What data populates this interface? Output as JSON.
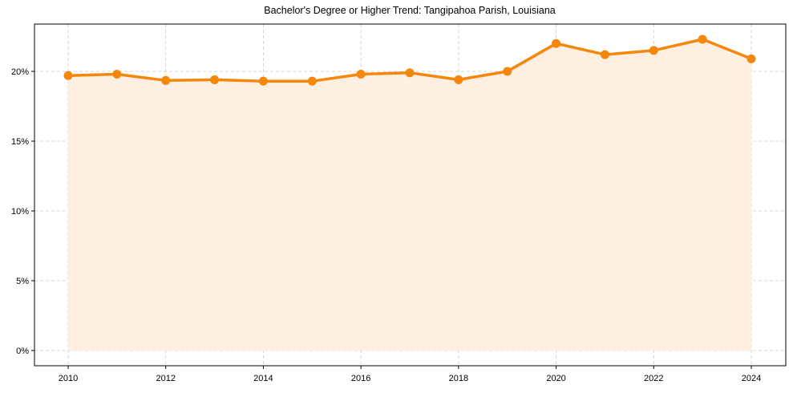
{
  "chart_data": {
    "type": "line",
    "title": "Bachelor's Degree or Higher Trend: Tangipahoa Parish, Louisiana",
    "xlabel": "",
    "ylabel": "",
    "x": [
      2010,
      2011,
      2012,
      2013,
      2014,
      2015,
      2016,
      2017,
      2018,
      2019,
      2020,
      2021,
      2022,
      2023,
      2024
    ],
    "series": [
      {
        "name": "Bachelor's Degree or Higher",
        "values": [
          19.7,
          19.8,
          19.35,
          19.4,
          19.3,
          19.3,
          19.8,
          19.9,
          19.4,
          20.0,
          22.0,
          21.2,
          21.5,
          22.3,
          20.9
        ],
        "color": "#f5870c",
        "fill_color": "#fdf0e3",
        "marker": "circle"
      }
    ],
    "xticks": [
      2010,
      2012,
      2014,
      2016,
      2018,
      2020,
      2022,
      2024
    ],
    "xtick_labels": [
      "2010",
      "2012",
      "2014",
      "2016",
      "2018",
      "2020",
      "2022",
      "2024"
    ],
    "yticks": [
      0,
      5,
      10,
      15,
      20
    ],
    "ytick_labels": [
      "0%",
      "5%",
      "10%",
      "15%",
      "20%"
    ],
    "xlim": [
      2009.5,
      2024.7
    ],
    "ylim": [
      -1.1,
      23.5
    ],
    "grid": true,
    "legend": null
  }
}
